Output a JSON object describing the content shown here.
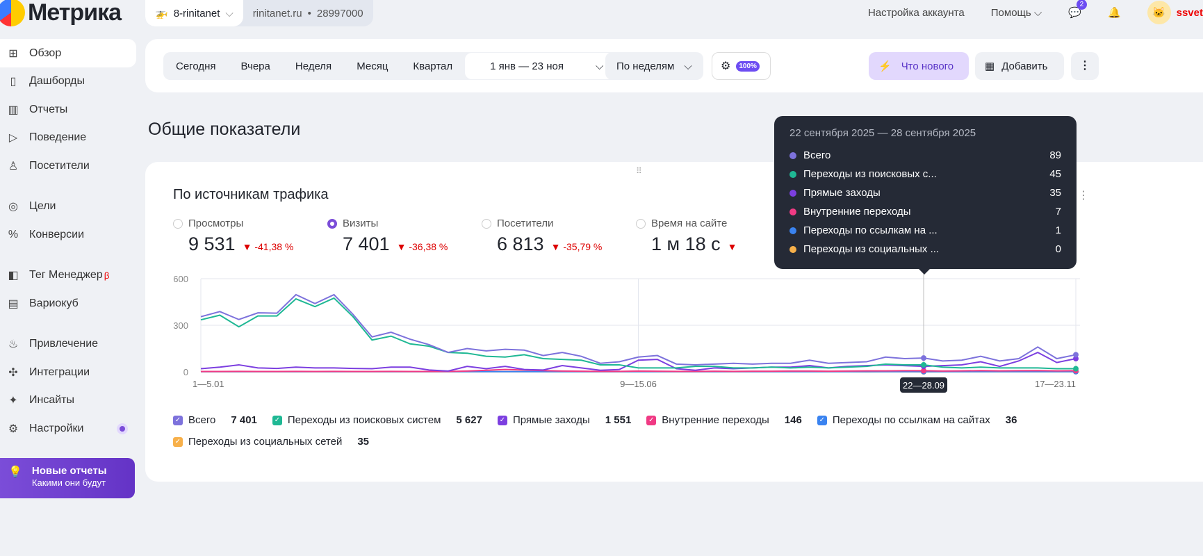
{
  "app": {
    "logo": "Метрика"
  },
  "counter": {
    "name": "8-rinitanet",
    "site": "rinitanet.ru",
    "id": "28997000"
  },
  "top": {
    "account": "Настройка аккаунта",
    "help": "Помощь",
    "messages_badge": "2",
    "user": "ssvet"
  },
  "sidebar": {
    "items": [
      {
        "label": "Обзор",
        "icon": "grid-icon"
      },
      {
        "label": "Дашборды",
        "icon": "dashboard-icon"
      },
      {
        "label": "Отчеты",
        "icon": "bar-chart-icon"
      },
      {
        "label": "Поведение",
        "icon": "play-icon"
      },
      {
        "label": "Посетители",
        "icon": "user-icon"
      },
      {
        "label": "Цели",
        "icon": "target-icon"
      },
      {
        "label": "Конверсии",
        "icon": "percent-icon"
      },
      {
        "label": "Тег Менеджер",
        "icon": "tag-icon",
        "sup": "β"
      },
      {
        "label": "Вариокуб",
        "icon": "cube-icon"
      },
      {
        "label": "Привлечение",
        "icon": "fire-icon"
      },
      {
        "label": "Интеграции",
        "icon": "puzzle-icon"
      },
      {
        "label": "Инсайты",
        "icon": "sparkle-icon"
      },
      {
        "label": "Настройки",
        "icon": "gear-icon"
      }
    ],
    "promo": {
      "title": "Новые отчеты",
      "subtitle": "Какими они будут"
    }
  },
  "toolbar": {
    "periods": [
      "Сегодня",
      "Вчера",
      "Неделя",
      "Месяц",
      "Квартал"
    ],
    "range": "1 янв — 23 ноя",
    "grouping": "По неделям",
    "filter_pct": "100%",
    "whats_new": "Что нового",
    "add": "Добавить"
  },
  "page_title": "Общие показатели",
  "widget": {
    "title": "По источникам трафика",
    "metrics": [
      {
        "label": "Просмотры",
        "value": "9 531",
        "change": "-41,38 %",
        "selected": false
      },
      {
        "label": "Визиты",
        "value": "7 401",
        "change": "-36,38 %",
        "selected": true
      },
      {
        "label": "Посетители",
        "value": "6 813",
        "change": "-35,79 %",
        "selected": false
      },
      {
        "label": "Время на сайте",
        "value": "1 м 18 с",
        "change": "",
        "selected": false
      }
    ],
    "legend": [
      {
        "name": "Всего",
        "total": "7 401"
      },
      {
        "name": "Переходы из поисковых систем",
        "total": "5 627"
      },
      {
        "name": "Прямые заходы",
        "total": "1 551"
      },
      {
        "name": "Внутренние переходы",
        "total": "146"
      },
      {
        "name": "Переходы по ссылкам на сайтах",
        "total": "36"
      },
      {
        "name": "Переходы из социальных сетей",
        "total": "35"
      }
    ],
    "tooltip": {
      "title": "22 сентября 2025 — 28 сентября 2025",
      "rows": [
        {
          "name": "Всего",
          "value": "89"
        },
        {
          "name": "Переходы из поисковых с...",
          "value": "45"
        },
        {
          "name": "Прямые заходы",
          "value": "35"
        },
        {
          "name": "Внутренние переходы",
          "value": "7"
        },
        {
          "name": "Переходы по ссылкам на ...",
          "value": "1"
        },
        {
          "name": "Переходы из социальных ...",
          "value": "0"
        }
      ]
    }
  },
  "chart_data": {
    "type": "line",
    "ylim": [
      0,
      600
    ],
    "yticks": [
      "0",
      "300",
      "600"
    ],
    "xticks": [
      "1—5.01",
      "9—15.06",
      "17—23.11"
    ],
    "xtick_index": [
      0,
      23,
      46
    ],
    "highlight_label": "22—28.09",
    "highlight_index": 38,
    "grid": true,
    "colors": [
      "#7d72dc",
      "#1fb894",
      "#7c3fe0",
      "#f03a84",
      "#3a83f0",
      "#f7b04a"
    ],
    "series": [
      {
        "name": "Всего",
        "values": [
          355,
          388,
          337,
          380,
          378,
          497,
          440,
          497,
          370,
          225,
          255,
          210,
          175,
          125,
          150,
          135,
          145,
          140,
          105,
          125,
          100,
          55,
          65,
          95,
          105,
          50,
          45,
          50,
          55,
          50,
          55,
          55,
          75,
          55,
          60,
          65,
          95,
          85,
          89,
          70,
          75,
          100,
          70,
          85,
          160,
          85,
          110
        ]
      },
      {
        "name": "Переходы из поисковых систем",
        "values": [
          335,
          365,
          290,
          360,
          360,
          470,
          420,
          475,
          355,
          205,
          230,
          180,
          165,
          125,
          120,
          100,
          95,
          110,
          85,
          80,
          75,
          45,
          45,
          25,
          25,
          25,
          35,
          35,
          25,
          25,
          30,
          25,
          30,
          25,
          30,
          35,
          50,
          45,
          45,
          30,
          25,
          30,
          25,
          25,
          25,
          20,
          20
        ]
      },
      {
        "name": "Прямые заходы",
        "values": [
          20,
          30,
          45,
          25,
          22,
          30,
          25,
          25,
          22,
          20,
          30,
          30,
          12,
          5,
          35,
          20,
          35,
          15,
          12,
          40,
          25,
          10,
          15,
          75,
          80,
          20,
          10,
          25,
          20,
          25,
          30,
          30,
          40,
          25,
          35,
          40,
          45,
          40,
          35,
          40,
          45,
          65,
          35,
          70,
          125,
          60,
          85
        ]
      },
      {
        "name": "Внутренние переходы",
        "values": [
          2,
          2,
          3,
          2,
          2,
          3,
          2,
          3,
          2,
          2,
          3,
          2,
          2,
          2,
          5,
          10,
          15,
          12,
          8,
          5,
          4,
          3,
          3,
          5,
          4,
          3,
          3,
          4,
          3,
          4,
          4,
          5,
          5,
          4,
          5,
          6,
          6,
          7,
          7,
          5,
          6,
          8,
          6,
          7,
          8,
          6,
          7
        ]
      },
      {
        "name": "Переходы по ссылкам на сайтах",
        "values": [
          1,
          1,
          1,
          1,
          1,
          1,
          1,
          1,
          1,
          1,
          1,
          1,
          1,
          1,
          1,
          1,
          1,
          1,
          1,
          1,
          1,
          1,
          1,
          1,
          1,
          1,
          1,
          1,
          1,
          1,
          1,
          1,
          1,
          1,
          1,
          1,
          1,
          1,
          1,
          1,
          1,
          1,
          1,
          1,
          1,
          1,
          1
        ]
      },
      {
        "name": "Переходы из социальных сетей",
        "values": [
          1,
          1,
          1,
          1,
          1,
          1,
          1,
          1,
          1,
          1,
          1,
          1,
          1,
          1,
          1,
          1,
          1,
          1,
          1,
          1,
          1,
          1,
          1,
          1,
          1,
          1,
          1,
          1,
          1,
          1,
          1,
          1,
          1,
          1,
          1,
          0,
          1,
          1,
          0,
          1,
          1,
          1,
          1,
          1,
          1,
          1,
          1
        ]
      }
    ]
  }
}
